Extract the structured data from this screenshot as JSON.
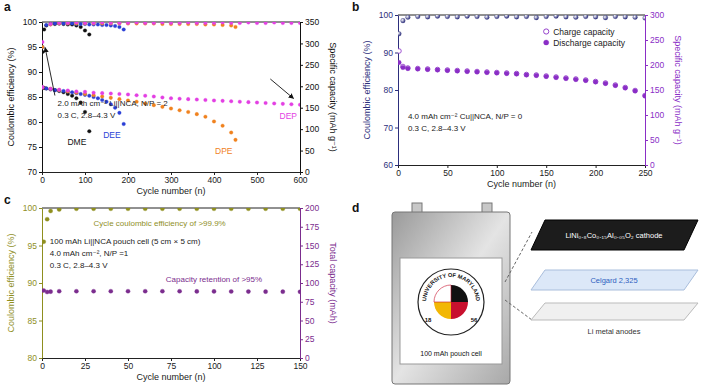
{
  "chart_data": [
    {
      "type": "scatter",
      "title": "a",
      "x_label": "Cycle number (n)",
      "y_label": "Coulombic efficiency (%)",
      "y2_label": "Specific capacity (mAh g⁻¹)",
      "xlim": [
        0,
        600
      ],
      "xticks": [
        0,
        100,
        200,
        300,
        400,
        500,
        600
      ],
      "ylim": [
        70,
        100
      ],
      "yticks": [
        70,
        75,
        80,
        85,
        90,
        95,
        100
      ],
      "y2lim": [
        0,
        350
      ],
      "y2ticks": [
        0,
        50,
        100,
        150,
        200,
        250,
        300,
        350
      ],
      "grid": false,
      "annotations": [
        {
          "text": "2.0 mAh cm⁻² Li||NCA, N/P = 2"
        },
        {
          "text": "0.3 C, 2.8–4.3 V"
        }
      ],
      "series": [
        {
          "color": "#111111",
          "marker": "circle",
          "axis": "y",
          "x": [
            1,
            5,
            10,
            20,
            30,
            40,
            50,
            60,
            70,
            80,
            90,
            100,
            110
          ],
          "values": [
            94,
            98.5,
            99.3,
            99.6,
            99.6,
            99.7,
            99.6,
            99.5,
            99.5,
            99.3,
            99.0,
            98.3,
            97.5
          ]
        },
        {
          "name": "DME",
          "color": "#111111",
          "marker": "circle",
          "axis": "y2",
          "x": [
            1,
            5,
            10,
            20,
            30,
            40,
            50,
            60,
            70,
            80,
            90,
            100,
            110
          ],
          "values": [
            197,
            196,
            195,
            193,
            191,
            189,
            186,
            182,
            178,
            172,
            162,
            140,
            95
          ]
        },
        {
          "color": "#2a3fd6",
          "marker": "circle",
          "axis": "y",
          "x": [
            1,
            10,
            20,
            30,
            40,
            50,
            60,
            70,
            80,
            90,
            100,
            110,
            120,
            130,
            140,
            150,
            160,
            170,
            180,
            190
          ],
          "values": [
            95,
            99.4,
            99.6,
            99.7,
            99.7,
            99.7,
            99.7,
            99.7,
            99.6,
            99.6,
            99.6,
            99.5,
            99.5,
            99.5,
            99.4,
            99.4,
            99.3,
            99.2,
            99.0,
            98.5
          ]
        },
        {
          "name": "DEE",
          "color": "#2a3fd6",
          "marker": "circle",
          "axis": "y2",
          "x": [
            1,
            10,
            20,
            30,
            40,
            50,
            60,
            70,
            80,
            90,
            100,
            110,
            120,
            130,
            140,
            150,
            160,
            170,
            180,
            190
          ],
          "values": [
            197,
            195,
            193,
            191,
            190,
            189,
            188,
            186,
            184,
            182,
            180,
            178,
            175,
            172,
            168,
            164,
            158,
            150,
            138,
            112
          ]
        },
        {
          "color": "#f0821e",
          "marker": "circle",
          "axis": "y",
          "x": [
            1,
            20,
            40,
            60,
            80,
            100,
            120,
            140,
            160,
            180,
            200,
            220,
            240,
            260,
            280,
            300,
            320,
            340,
            360,
            380,
            400,
            420,
            440,
            450
          ],
          "values": [
            95,
            99.5,
            99.7,
            99.7,
            99.7,
            99.7,
            99.7,
            99.7,
            99.7,
            99.7,
            99.7,
            99.7,
            99.7,
            99.7,
            99.6,
            99.6,
            99.6,
            99.6,
            99.6,
            99.5,
            99.5,
            99.4,
            99.3,
            99.0
          ]
        },
        {
          "name": "DPE",
          "color": "#f0821e",
          "marker": "circle",
          "axis": "y2",
          "x": [
            1,
            20,
            40,
            60,
            80,
            100,
            120,
            140,
            160,
            180,
            200,
            220,
            240,
            260,
            280,
            300,
            320,
            340,
            360,
            380,
            400,
            420,
            440,
            450
          ],
          "values": [
            197,
            194,
            191,
            188,
            185,
            182,
            179,
            176,
            173,
            170,
            167,
            164,
            160,
            156,
            152,
            148,
            144,
            140,
            135,
            129,
            118,
            108,
            92,
            75
          ]
        },
        {
          "color": "#e33fe3",
          "marker": "circle",
          "axis": "y",
          "x": [
            1,
            20,
            40,
            60,
            80,
            100,
            120,
            140,
            160,
            180,
            200,
            220,
            240,
            260,
            280,
            300,
            320,
            340,
            360,
            380,
            400,
            420,
            440,
            460,
            480,
            500,
            520,
            540,
            560,
            580,
            600
          ],
          "values": [
            96,
            99.6,
            99.8,
            99.8,
            99.9,
            99.8,
            99.8,
            99.9,
            99.8,
            99.8,
            99.8,
            99.9,
            99.8,
            99.8,
            99.9,
            99.8,
            99.8,
            99.9,
            99.8,
            99.8,
            99.8,
            99.9,
            99.8,
            99.8,
            99.9,
            99.8,
            99.8,
            99.9,
            99.8,
            99.8,
            99.8
          ]
        },
        {
          "name": "DEP",
          "color": "#e33fe3",
          "marker": "circle",
          "axis": "y2",
          "x": [
            1,
            20,
            40,
            60,
            80,
            100,
            120,
            140,
            160,
            180,
            200,
            220,
            240,
            260,
            280,
            300,
            320,
            340,
            360,
            380,
            400,
            420,
            440,
            460,
            480,
            500,
            520,
            540,
            560,
            580,
            600
          ],
          "values": [
            198,
            194,
            192,
            190,
            188,
            187,
            185,
            184,
            183,
            182,
            181,
            179,
            178,
            176,
            174,
            172,
            171,
            170,
            169,
            168,
            167,
            166,
            165,
            164,
            163,
            162,
            161,
            160,
            159,
            158,
            157
          ]
        }
      ]
    },
    {
      "type": "scatter",
      "title": "b",
      "x_label": "Cycle number (n)",
      "y_label": "Coulombic efficiency (%)",
      "y2_label": "Specific capacity (mAh g⁻¹)",
      "xlim": [
        0,
        250
      ],
      "xticks": [
        0,
        50,
        100,
        150,
        200,
        250
      ],
      "ylim": [
        60,
        100
      ],
      "yticks": [
        60,
        70,
        80,
        90,
        100
      ],
      "y2lim": [
        0,
        300
      ],
      "y2ticks": [
        0,
        50,
        100,
        150,
        200,
        250,
        300
      ],
      "grid": false,
      "legend": "upper right",
      "annotations": [
        {
          "text": "4.0 mAh cm⁻² Cu||NCA, N/P = 0"
        },
        {
          "text": "0.3 C, 2.8–4.3 V"
        }
      ],
      "series": [
        {
          "color": "#2c2e7c",
          "marker": "sphere",
          "axis": "y",
          "x": [
            1,
            5,
            10,
            20,
            30,
            40,
            50,
            60,
            70,
            80,
            90,
            100,
            110,
            120,
            130,
            140,
            150,
            160,
            170,
            180,
            190,
            200,
            210,
            220,
            230,
            240,
            250
          ],
          "values": [
            95,
            98.5,
            99.4,
            99.6,
            99.5,
            99.7,
            99.6,
            99.5,
            99.7,
            99.6,
            99.4,
            99.6,
            99.7,
            99.5,
            99.6,
            99.3,
            99.6,
            99.7,
            99.5,
            99.4,
            99.6,
            99.5,
            99.3,
            99.6,
            99.5,
            99.4,
            99.2
          ]
        },
        {
          "name": "Charge capacity",
          "color": "#8a2ec6",
          "marker": "open_circle",
          "axis": "y2",
          "x": [
            1,
            5,
            10,
            20,
            30,
            40,
            50,
            60,
            70,
            80,
            90,
            100,
            110,
            120,
            130,
            140,
            150,
            160,
            170,
            180,
            190,
            200,
            210,
            220,
            230,
            240,
            250
          ],
          "values": [
            228,
            197,
            194,
            193,
            192,
            191,
            190,
            189,
            188,
            187,
            186,
            185,
            184,
            183,
            181,
            180,
            178,
            176,
            174,
            172,
            170,
            167,
            164,
            160,
            155,
            149,
            139
          ]
        },
        {
          "name": "Discharge capacity",
          "color": "#8a2ec6",
          "marker": "circle",
          "axis": "y2",
          "x": [
            1,
            5,
            10,
            20,
            30,
            40,
            50,
            60,
            70,
            80,
            90,
            100,
            110,
            120,
            130,
            140,
            150,
            160,
            170,
            180,
            190,
            200,
            210,
            220,
            230,
            240,
            250
          ],
          "values": [
            205,
            195,
            193,
            192,
            191,
            190,
            189,
            188,
            187,
            186,
            185,
            184,
            183,
            182,
            180,
            179,
            177,
            175,
            173,
            171,
            169,
            166,
            163,
            159,
            154,
            148,
            138
          ]
        }
      ]
    },
    {
      "type": "scatter",
      "title": "c",
      "x_label": "Cycle number (n)",
      "y_label": "Coulombic efficiency (%)",
      "y2_label": "Total capacity (mAh)",
      "xlim": [
        0,
        150
      ],
      "xticks": [
        0,
        25,
        50,
        75,
        100,
        125,
        150
      ],
      "ylim": [
        80,
        100
      ],
      "yticks": [
        80,
        85,
        90,
        95,
        100
      ],
      "y2lim": [
        0,
        200
      ],
      "y2ticks": [
        0,
        25,
        50,
        75,
        100,
        125,
        150,
        175,
        200
      ],
      "grid": false,
      "annotations": [
        {
          "text": "Cycle coulombic efficiency of >99.9%",
          "color": "#8f8f1f"
        },
        {
          "text": "100 mAh Li||NCA pouch cell (5 cm × 5 cm)"
        },
        {
          "text": "4.0 mAh cm⁻², N/P =1"
        },
        {
          "text": "0.3 C, 2.8–4.3 V"
        },
        {
          "text": "Capacity retention of >95%",
          "color": "#7b2d8e"
        }
      ],
      "series": [
        {
          "color": "#8f8f1f",
          "marker": "circle",
          "axis": "y",
          "x": [
            1,
            3,
            5,
            10,
            20,
            30,
            40,
            50,
            60,
            70,
            80,
            90,
            100,
            110,
            120,
            130,
            140,
            150
          ],
          "values": [
            95.5,
            98.5,
            99.6,
            99.8,
            99.9,
            99.9,
            99.9,
            99.9,
            99.9,
            99.9,
            99.9,
            99.9,
            99.9,
            99.9,
            99.9,
            99.9,
            99.9,
            99.9
          ]
        },
        {
          "color": "#7b2d8e",
          "marker": "circle",
          "axis": "y2",
          "x": [
            1,
            3,
            5,
            10,
            20,
            30,
            40,
            50,
            60,
            70,
            80,
            90,
            100,
            110,
            120,
            130,
            140,
            150
          ],
          "values": [
            90,
            88,
            88.5,
            89,
            89,
            89,
            89,
            89,
            89,
            89,
            89,
            88.8,
            88.8,
            88.7,
            88.6,
            88.5,
            88.4,
            88.3
          ]
        }
      ]
    }
  ],
  "diagram": {
    "title": "d",
    "photo_label": "100 mAh pouch cell",
    "logo_text": "UNIVERSITY OF MARYLAND",
    "logo_years": [
      "18",
      "56"
    ],
    "layers": [
      "LiNi₀.₈Co₀.₁₅Al₀.₀₅O₂ cathode",
      "Celgard 2,325",
      "Li metal anodes"
    ]
  }
}
